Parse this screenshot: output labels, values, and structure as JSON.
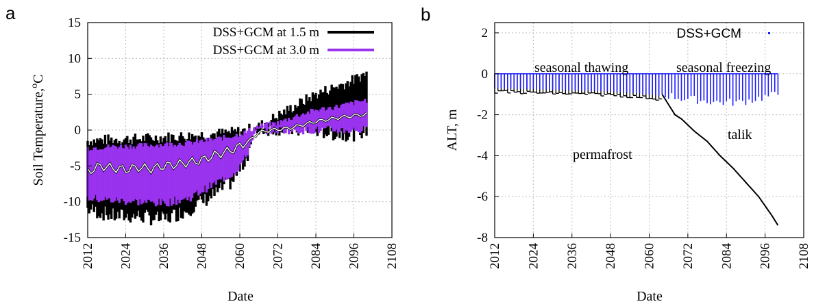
{
  "chart_data": [
    {
      "panel": "a",
      "type": "line",
      "xlabel": "Date",
      "ylabel": "Soil Temperature,",
      "ylabel_sup": "o",
      "ylabel_unit": "C",
      "xlim": [
        2012,
        2108
      ],
      "ylim": [
        -15,
        15
      ],
      "xticks": [
        "2012",
        "2024",
        "2036",
        "2048",
        "2060",
        "2072",
        "2084",
        "2096",
        "2108"
      ],
      "yticks": [
        "-15",
        "-10",
        "-5",
        "0",
        "5",
        "10",
        "15"
      ],
      "legend_position": "top-right",
      "grid": true,
      "series": [
        {
          "name": "DSS+GCM at 1.5 m",
          "color": "#000000",
          "x": [
            2012,
            2020,
            2028,
            2036,
            2044,
            2052,
            2058,
            2062,
            2064,
            2066,
            2068,
            2072,
            2078,
            2084,
            2090,
            2096,
            2100
          ],
          "upper": [
            -1.5,
            -1.3,
            -1.2,
            -1.0,
            -0.8,
            -0.5,
            -0.3,
            0.0,
            0.3,
            0.5,
            1.0,
            2.0,
            3.5,
            5.0,
            6.0,
            7.0,
            8.0
          ],
          "lower": [
            -11,
            -12,
            -12,
            -12.5,
            -11,
            -9,
            -7,
            -4,
            -1,
            0.1,
            0.2,
            0.3,
            0.0,
            0.0,
            -0.5,
            -0.5,
            0.0
          ]
        },
        {
          "name": "DSS+GCM at 3.0 m",
          "color": "#9933ee",
          "x": [
            2012,
            2020,
            2028,
            2036,
            2044,
            2052,
            2058,
            2062,
            2064,
            2066,
            2068,
            2072,
            2078,
            2084,
            2090,
            2096,
            2100
          ],
          "upper": [
            -2.5,
            -2.3,
            -2.2,
            -2.0,
            -1.8,
            -1.3,
            -0.8,
            -0.3,
            0.2,
            0.5,
            0.7,
            1.0,
            2.0,
            2.8,
            3.2,
            3.8,
            4.2
          ],
          "lower": [
            -9.5,
            -9.8,
            -10,
            -10.2,
            -9.5,
            -7.5,
            -6.0,
            -3.8,
            -1.0,
            0.0,
            0.0,
            0.0,
            0.0,
            0.0,
            0.0,
            0.0,
            0.0
          ]
        }
      ],
      "mean_line": {
        "x": [
          2012,
          2016,
          2020,
          2024,
          2028,
          2032,
          2036,
          2040,
          2044,
          2048,
          2052,
          2056,
          2060,
          2063,
          2066,
          2070,
          2076,
          2084,
          2092,
          2100
        ],
        "y": [
          -5.8,
          -5.0,
          -5.3,
          -5.5,
          -5.2,
          -5.4,
          -5.0,
          -4.8,
          -4.5,
          -4.2,
          -3.5,
          -3.0,
          -2.3,
          -1.5,
          -0.3,
          0.0,
          0.3,
          1.2,
          1.8,
          2.2
        ]
      }
    },
    {
      "panel": "b",
      "type": "line",
      "xlabel": "Date",
      "ylabel": "ALT, m",
      "xlim": [
        2012,
        2108
      ],
      "ylim": [
        -8,
        2.5
      ],
      "xticks": [
        "2012",
        "2024",
        "2036",
        "2048",
        "2060",
        "2072",
        "2084",
        "2096",
        "2108"
      ],
      "yticks": [
        "2",
        "0",
        "-2",
        "-4",
        "-6",
        "-8"
      ],
      "legend_position": "top-right",
      "grid": true,
      "annotations": [
        "seasonal thawing",
        "seasonal freezing",
        "talik",
        "permafrost"
      ],
      "series": [
        {
          "name": "DSS+GCM",
          "color": "#1a1aff",
          "x": [
            2064,
            2070,
            2076,
            2082,
            2088,
            2094,
            2100
          ],
          "y": [
            -1.0,
            -1.2,
            -1.3,
            -1.4,
            -1.4,
            -1.2,
            -1.0
          ]
        }
      ],
      "seasonal_thaw_depth": {
        "x": [
          2012,
          2024,
          2036,
          2048,
          2060,
          2064
        ],
        "y": [
          -0.8,
          -0.85,
          -0.9,
          -0.95,
          -1.1,
          -1.2
        ]
      },
      "talik_boundary": {
        "x": [
          2064,
          2066,
          2068,
          2070,
          2072,
          2074,
          2078,
          2082,
          2086,
          2090,
          2094,
          2098,
          2100
        ],
        "y": [
          -1.0,
          -1.5,
          -2.0,
          -2.2,
          -2.5,
          -2.8,
          -3.3,
          -4.0,
          -4.6,
          -5.3,
          -6.0,
          -6.9,
          -7.4
        ]
      }
    }
  ]
}
